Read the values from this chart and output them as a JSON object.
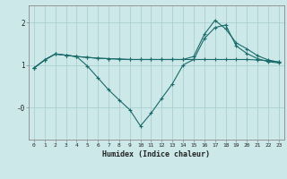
{
  "xlabel": "Humidex (Indice chaleur)",
  "bg_color": "#cce8e8",
  "grid_color": "#aacfcf",
  "line_color": "#1a6b6b",
  "xlim": [
    -0.5,
    23.5
  ],
  "ylim": [
    -0.75,
    2.4
  ],
  "yticks": [
    2,
    1,
    0
  ],
  "ytick_labels": [
    "2",
    "1",
    "-0"
  ],
  "xticks": [
    0,
    1,
    2,
    3,
    4,
    5,
    6,
    7,
    8,
    9,
    10,
    11,
    12,
    13,
    14,
    15,
    16,
    17,
    18,
    19,
    20,
    21,
    22,
    23
  ],
  "line1_y": [
    0.93,
    1.12,
    1.26,
    1.23,
    1.2,
    1.18,
    1.16,
    1.15,
    1.14,
    1.13,
    1.13,
    1.13,
    1.13,
    1.13,
    1.13,
    1.13,
    1.13,
    1.13,
    1.13,
    1.13,
    1.13,
    1.12,
    1.1,
    1.07
  ],
  "line2_y": [
    0.93,
    1.12,
    1.26,
    1.23,
    1.2,
    0.98,
    0.7,
    0.42,
    0.18,
    -0.05,
    -0.43,
    -0.13,
    0.22,
    0.56,
    1.0,
    1.13,
    1.62,
    1.88,
    1.94,
    1.45,
    1.27,
    1.15,
    1.08,
    1.05
  ],
  "line3_y": [
    0.93,
    1.12,
    1.26,
    1.23,
    1.2,
    1.18,
    1.16,
    1.15,
    1.14,
    1.13,
    1.13,
    1.13,
    1.13,
    1.13,
    1.13,
    1.2,
    1.72,
    2.05,
    1.85,
    1.52,
    1.38,
    1.22,
    1.12,
    1.07
  ]
}
